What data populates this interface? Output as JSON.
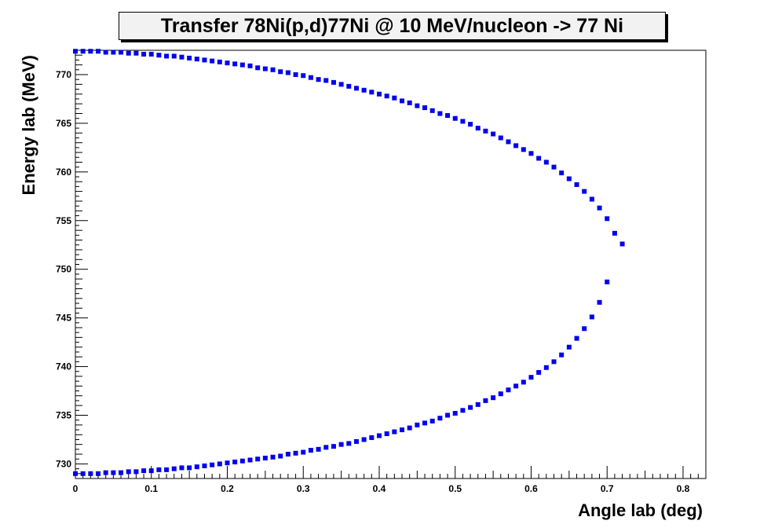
{
  "chart_data": {
    "type": "scatter",
    "title": "Transfer 78Ni(p,d)77Ni @ 10 MeV/nucleon -> 77 Ni",
    "xlabel": "Angle lab (deg)",
    "ylabel": "Energy lab (MeV)",
    "xlim": [
      0,
      0.83
    ],
    "ylim": [
      728.5,
      772.5
    ],
    "x_ticks": [
      "0",
      "0.1",
      "0.2",
      "0.3",
      "0.4",
      "0.5",
      "0.6",
      "0.7",
      "0.8"
    ],
    "y_ticks": [
      "730",
      "735",
      "740",
      "745",
      "750",
      "755",
      "760",
      "765",
      "770"
    ],
    "marker_color": "#0000ee",
    "grid": false,
    "series": [
      {
        "values_upper_branch": [
          [
            0.0,
            772.4
          ],
          [
            0.01,
            772.4
          ],
          [
            0.02,
            772.4
          ],
          [
            0.03,
            772.4
          ],
          [
            0.04,
            772.3
          ],
          [
            0.05,
            772.3
          ],
          [
            0.06,
            772.3
          ],
          [
            0.07,
            772.2
          ],
          [
            0.08,
            772.2
          ],
          [
            0.09,
            772.1
          ],
          [
            0.1,
            772.1
          ],
          [
            0.11,
            772.0
          ],
          [
            0.12,
            771.9
          ],
          [
            0.13,
            771.9
          ],
          [
            0.14,
            771.8
          ],
          [
            0.15,
            771.7
          ],
          [
            0.16,
            771.6
          ],
          [
            0.17,
            771.5
          ],
          [
            0.18,
            771.4
          ],
          [
            0.19,
            771.3
          ],
          [
            0.2,
            771.2
          ],
          [
            0.21,
            771.1
          ],
          [
            0.22,
            771.0
          ],
          [
            0.23,
            770.9
          ],
          [
            0.24,
            770.7
          ],
          [
            0.25,
            770.6
          ],
          [
            0.26,
            770.5
          ],
          [
            0.27,
            770.3
          ],
          [
            0.28,
            770.2
          ],
          [
            0.29,
            770.0
          ],
          [
            0.3,
            769.9
          ],
          [
            0.31,
            769.7
          ],
          [
            0.32,
            769.5
          ],
          [
            0.33,
            769.4
          ],
          [
            0.34,
            769.2
          ],
          [
            0.35,
            769.0
          ],
          [
            0.36,
            768.8
          ],
          [
            0.37,
            768.6
          ],
          [
            0.38,
            768.4
          ],
          [
            0.39,
            768.2
          ],
          [
            0.4,
            768.0
          ],
          [
            0.41,
            767.8
          ],
          [
            0.42,
            767.6
          ],
          [
            0.43,
            767.3
          ],
          [
            0.44,
            767.1
          ],
          [
            0.45,
            766.8
          ],
          [
            0.46,
            766.6
          ],
          [
            0.47,
            766.3
          ],
          [
            0.48,
            766.0
          ],
          [
            0.49,
            765.8
          ],
          [
            0.5,
            765.5
          ],
          [
            0.51,
            765.2
          ],
          [
            0.52,
            764.9
          ],
          [
            0.53,
            764.5
          ],
          [
            0.54,
            764.2
          ],
          [
            0.55,
            763.9
          ],
          [
            0.56,
            763.5
          ],
          [
            0.57,
            763.1
          ],
          [
            0.58,
            762.7
          ],
          [
            0.59,
            762.3
          ],
          [
            0.6,
            761.9
          ],
          [
            0.61,
            761.4
          ],
          [
            0.62,
            761.0
          ],
          [
            0.63,
            760.5
          ],
          [
            0.64,
            759.9
          ],
          [
            0.65,
            759.3
          ],
          [
            0.66,
            758.7
          ],
          [
            0.67,
            758.0
          ],
          [
            0.68,
            757.2
          ],
          [
            0.69,
            756.3
          ],
          [
            0.7,
            755.2
          ],
          [
            0.71,
            753.7
          ],
          [
            0.72,
            752.6
          ]
        ],
        "values_lower_branch": [
          [
            0.0,
            729.0
          ],
          [
            0.01,
            729.0
          ],
          [
            0.02,
            729.0
          ],
          [
            0.03,
            729.0
          ],
          [
            0.04,
            729.1
          ],
          [
            0.05,
            729.1
          ],
          [
            0.06,
            729.1
          ],
          [
            0.07,
            729.2
          ],
          [
            0.08,
            729.2
          ],
          [
            0.09,
            729.3
          ],
          [
            0.1,
            729.3
          ],
          [
            0.11,
            729.4
          ],
          [
            0.12,
            729.4
          ],
          [
            0.13,
            729.5
          ],
          [
            0.14,
            729.6
          ],
          [
            0.15,
            729.6
          ],
          [
            0.16,
            729.7
          ],
          [
            0.17,
            729.8
          ],
          [
            0.18,
            729.9
          ],
          [
            0.19,
            730.0
          ],
          [
            0.2,
            730.1
          ],
          [
            0.21,
            730.2
          ],
          [
            0.22,
            730.3
          ],
          [
            0.23,
            730.4
          ],
          [
            0.24,
            730.5
          ],
          [
            0.25,
            730.6
          ],
          [
            0.26,
            730.7
          ],
          [
            0.27,
            730.8
          ],
          [
            0.28,
            731.0
          ],
          [
            0.29,
            731.1
          ],
          [
            0.3,
            731.2
          ],
          [
            0.31,
            731.4
          ],
          [
            0.32,
            731.5
          ],
          [
            0.33,
            731.7
          ],
          [
            0.34,
            731.8
          ],
          [
            0.35,
            732.0
          ],
          [
            0.36,
            732.1
          ],
          [
            0.37,
            732.3
          ],
          [
            0.38,
            732.5
          ],
          [
            0.39,
            732.7
          ],
          [
            0.4,
            732.9
          ],
          [
            0.41,
            733.1
          ],
          [
            0.42,
            733.3
          ],
          [
            0.43,
            733.5
          ],
          [
            0.44,
            733.7
          ],
          [
            0.45,
            734.0
          ],
          [
            0.46,
            734.2
          ],
          [
            0.47,
            734.4
          ],
          [
            0.48,
            734.7
          ],
          [
            0.49,
            735.0
          ],
          [
            0.5,
            735.2
          ],
          [
            0.51,
            735.5
          ],
          [
            0.52,
            735.8
          ],
          [
            0.53,
            736.1
          ],
          [
            0.54,
            736.5
          ],
          [
            0.55,
            736.8
          ],
          [
            0.56,
            737.2
          ],
          [
            0.57,
            737.6
          ],
          [
            0.58,
            738.0
          ],
          [
            0.59,
            738.4
          ],
          [
            0.6,
            738.9
          ],
          [
            0.61,
            739.4
          ],
          [
            0.62,
            739.9
          ],
          [
            0.63,
            740.5
          ],
          [
            0.64,
            741.2
          ],
          [
            0.65,
            742.0
          ],
          [
            0.66,
            742.9
          ],
          [
            0.67,
            743.9
          ],
          [
            0.68,
            745.1
          ],
          [
            0.69,
            746.6
          ],
          [
            0.7,
            748.7
          ]
        ]
      }
    ]
  }
}
